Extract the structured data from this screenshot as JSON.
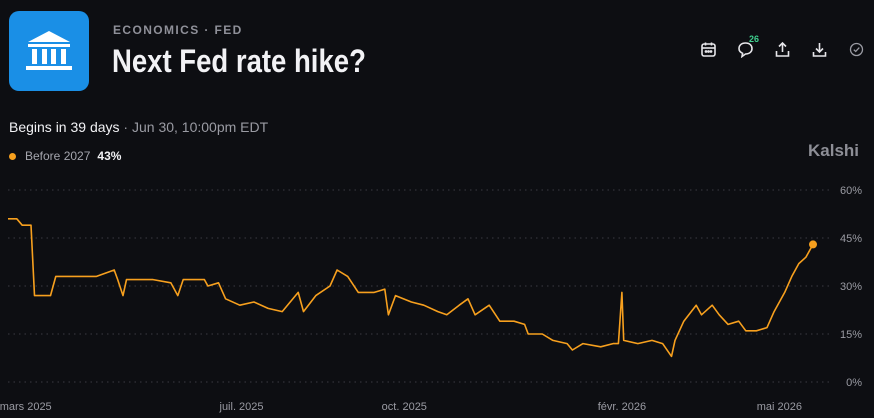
{
  "header": {
    "category": "ECONOMICS · FED",
    "title": "Next Fed rate hike?",
    "comment_count": "26"
  },
  "icons": [
    "calendar-icon",
    "comment-icon",
    "share-icon",
    "download-icon",
    "check-circle-icon",
    "bank-icon"
  ],
  "colors": {
    "series": "#f7a01e",
    "logo_bg": "#1a8fe6",
    "badge": "#3ecf8e"
  },
  "subheader": {
    "begins": "Begins in 39 days",
    "separator": " · ",
    "date": "Jun 30, 10:00pm EDT"
  },
  "legend": {
    "name": "Before 2027",
    "value": "43%"
  },
  "brand": "Kalshi",
  "chart_data": {
    "type": "line",
    "series": [
      {
        "name": "Before 2027",
        "points": [
          [
            "2025-02-19",
            51
          ],
          [
            "2025-02-24",
            51
          ],
          [
            "2025-02-27",
            49
          ],
          [
            "2025-03-04",
            49
          ],
          [
            "2025-03-06",
            27
          ],
          [
            "2025-03-15",
            27
          ],
          [
            "2025-03-18",
            33
          ],
          [
            "2025-03-30",
            33
          ],
          [
            "2025-04-10",
            33
          ],
          [
            "2025-04-20",
            35
          ],
          [
            "2025-04-22",
            32
          ],
          [
            "2025-04-25",
            27
          ],
          [
            "2025-04-27",
            32
          ],
          [
            "2025-05-12",
            32
          ],
          [
            "2025-05-22",
            31
          ],
          [
            "2025-05-26",
            27
          ],
          [
            "2025-05-29",
            32
          ],
          [
            "2025-06-10",
            32
          ],
          [
            "2025-06-12",
            30
          ],
          [
            "2025-06-18",
            31
          ],
          [
            "2025-06-22",
            26
          ],
          [
            "2025-06-30",
            24
          ],
          [
            "2025-07-08",
            25
          ],
          [
            "2025-07-16",
            23
          ],
          [
            "2025-07-24",
            22
          ],
          [
            "2025-08-02",
            28
          ],
          [
            "2025-08-05",
            22
          ],
          [
            "2025-08-12",
            27
          ],
          [
            "2025-08-20",
            30
          ],
          [
            "2025-08-24",
            35
          ],
          [
            "2025-08-30",
            33
          ],
          [
            "2025-09-05",
            28
          ],
          [
            "2025-09-14",
            28
          ],
          [
            "2025-09-20",
            29
          ],
          [
            "2025-09-22",
            21
          ],
          [
            "2025-09-26",
            27
          ],
          [
            "2025-10-05",
            25
          ],
          [
            "2025-10-12",
            24
          ],
          [
            "2025-10-20",
            22
          ],
          [
            "2025-10-25",
            21
          ],
          [
            "2025-11-01",
            24
          ],
          [
            "2025-11-06",
            26
          ],
          [
            "2025-11-10",
            21
          ],
          [
            "2025-11-18",
            24
          ],
          [
            "2025-11-24",
            19
          ],
          [
            "2025-12-02",
            19
          ],
          [
            "2025-12-08",
            18
          ],
          [
            "2025-12-10",
            15
          ],
          [
            "2025-12-18",
            15
          ],
          [
            "2025-12-24",
            13
          ],
          [
            "2026-01-01",
            12
          ],
          [
            "2026-01-04",
            10
          ],
          [
            "2026-01-10",
            12
          ],
          [
            "2026-01-20",
            11
          ],
          [
            "2026-01-27",
            12
          ],
          [
            "2026-01-30",
            12
          ],
          [
            "2026-02-01",
            28
          ],
          [
            "2026-02-02",
            13
          ],
          [
            "2026-02-10",
            12
          ],
          [
            "2026-02-18",
            13
          ],
          [
            "2026-02-24",
            12
          ],
          [
            "2026-03-01",
            8
          ],
          [
            "2026-03-03",
            13
          ],
          [
            "2026-03-08",
            19
          ],
          [
            "2026-03-15",
            24
          ],
          [
            "2026-03-18",
            21
          ],
          [
            "2026-03-24",
            24
          ],
          [
            "2026-03-28",
            21
          ],
          [
            "2026-04-02",
            18
          ],
          [
            "2026-04-08",
            19
          ],
          [
            "2026-04-12",
            16
          ],
          [
            "2026-04-18",
            16
          ],
          [
            "2026-04-24",
            17
          ],
          [
            "2026-04-28",
            22
          ],
          [
            "2026-05-04",
            28
          ],
          [
            "2026-05-08",
            33
          ],
          [
            "2026-05-12",
            37
          ],
          [
            "2026-05-16",
            39
          ],
          [
            "2026-05-20",
            43
          ]
        ]
      }
    ],
    "x_ticks": [
      {
        "date": "2025-03-01",
        "label": "mars 2025"
      },
      {
        "date": "2025-07-01",
        "label": "juil. 2025"
      },
      {
        "date": "2025-10-01",
        "label": "oct. 2025"
      },
      {
        "date": "2026-02-01",
        "label": "févr. 2026"
      },
      {
        "date": "2026-05-01",
        "label": "mai 2026"
      }
    ],
    "y_ticks": [
      {
        "value": 60,
        "label": "60%"
      },
      {
        "value": 45,
        "label": "45%"
      },
      {
        "value": 30,
        "label": "30%"
      },
      {
        "value": 15,
        "label": "15%"
      },
      {
        "value": 0,
        "label": "0%"
      }
    ],
    "xlim": [
      "2025-02-19",
      "2026-05-20"
    ],
    "ylim": [
      0,
      60
    ],
    "grid": true,
    "xlabel": "",
    "ylabel": ""
  }
}
